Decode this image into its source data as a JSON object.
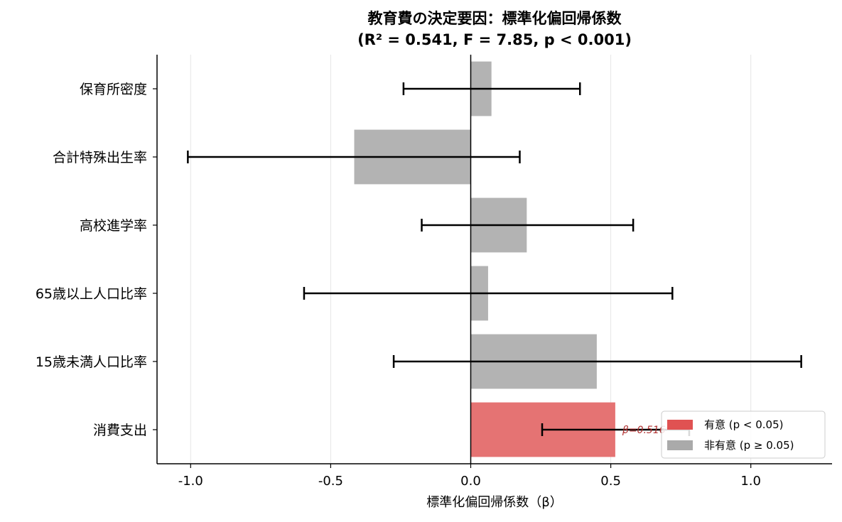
{
  "chart_data": {
    "type": "bar",
    "orientation": "horizontal",
    "title": "教育費の決定要因：標準化偏回帰係数",
    "subtitle": "(R² = 0.541, F = 7.85, p < 0.001)",
    "xlabel": "標準化偏回帰係数（β）",
    "xlim": [
      -1.12,
      1.29
    ],
    "xticks": [
      -1.0,
      -0.5,
      0.0,
      0.5,
      1.0
    ],
    "xtick_labels": [
      "-1.0",
      "-0.5",
      "0.0",
      "0.5",
      "1.0"
    ],
    "grid": "x",
    "categories": [
      "保育所密度",
      "合計特殊出生率",
      "高校進学率",
      "65歳以上人口比率",
      "15歳未満人口比率",
      "消費支出"
    ],
    "values": [
      0.074,
      -0.416,
      0.2,
      0.062,
      0.45,
      0.516
    ],
    "ci_low": [
      -0.24,
      -1.01,
      -0.175,
      -0.595,
      -0.275,
      0.255
    ],
    "ci_high": [
      0.39,
      0.175,
      0.58,
      0.72,
      1.18,
      0.78
    ],
    "significant": [
      false,
      false,
      false,
      false,
      false,
      true
    ],
    "colors": {
      "significant": "#e57373",
      "nonsignificant": "#b3b3b3",
      "errorbar": "#000000",
      "annotation": "#b03030",
      "grid": "#e6e6e6"
    },
    "annotation": {
      "category": "消費支出",
      "text": "β=0.516*"
    },
    "legend": {
      "position": "lower-right",
      "entries": [
        {
          "label": "有意 (p < 0.05)",
          "color": "#e05252"
        },
        {
          "label": "非有意 (p ≥ 0.05)",
          "color": "#aaaaaa"
        }
      ]
    }
  }
}
